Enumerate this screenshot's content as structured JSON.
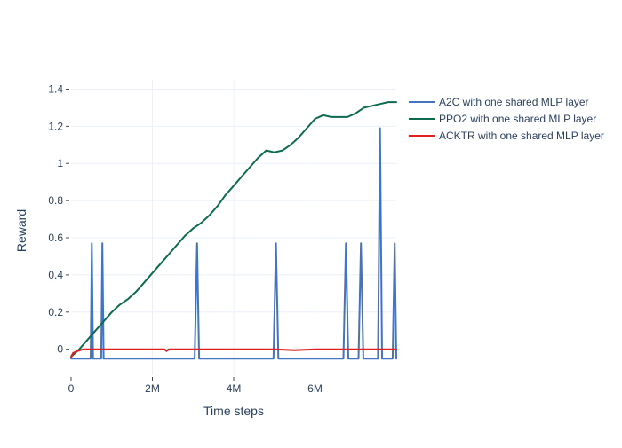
{
  "chart_data": {
    "type": "line",
    "title": "",
    "xlabel": "Time steps",
    "ylabel": "Reward",
    "xlim": [
      0,
      8000000
    ],
    "ylim": [
      -0.14,
      1.45
    ],
    "grid": true,
    "legend_position": "top-right",
    "x_ticks": [
      {
        "value": 0,
        "label": "0"
      },
      {
        "value": 2000000,
        "label": "2M"
      },
      {
        "value": 4000000,
        "label": "4M"
      },
      {
        "value": 6000000,
        "label": "6M"
      }
    ],
    "y_ticks": [
      {
        "value": 0,
        "label": "0"
      },
      {
        "value": 0.2,
        "label": "0.2"
      },
      {
        "value": 0.4,
        "label": "0.4"
      },
      {
        "value": 0.6,
        "label": "0.6"
      },
      {
        "value": 0.8,
        "label": "0.8"
      },
      {
        "value": 1.0,
        "label": "1"
      },
      {
        "value": 1.2,
        "label": "1.2"
      },
      {
        "value": 1.4,
        "label": "1.4"
      }
    ],
    "series": [
      {
        "name": "A2C with one shared MLP layer",
        "color": "#4472c4",
        "x": [
          0,
          450000,
          480000,
          510000,
          540000,
          700000,
          740000,
          770000,
          800000,
          1500000,
          2300000,
          2500000,
          3040000,
          3100000,
          3150000,
          4000000,
          4980000,
          5040000,
          5100000,
          6000000,
          6700000,
          6760000,
          6820000,
          7070000,
          7130000,
          7190000,
          7550000,
          7600000,
          7650000,
          7910000,
          7960000,
          8000000
        ],
        "y": [
          -0.05,
          -0.05,
          -0.05,
          0.57,
          -0.05,
          -0.05,
          -0.05,
          0.57,
          -0.05,
          -0.05,
          -0.05,
          -0.05,
          -0.05,
          0.57,
          -0.05,
          -0.05,
          -0.05,
          0.57,
          -0.05,
          -0.05,
          -0.05,
          0.57,
          -0.05,
          -0.05,
          0.57,
          -0.05,
          -0.05,
          1.19,
          -0.05,
          -0.05,
          0.57,
          -0.05
        ]
      },
      {
        "name": "PPO2 with one shared MLP layer",
        "color": "#0c6b4f",
        "x": [
          0,
          200000,
          400000,
          600000,
          800000,
          1000000,
          1200000,
          1400000,
          1600000,
          1800000,
          2000000,
          2200000,
          2400000,
          2600000,
          2800000,
          3000000,
          3200000,
          3400000,
          3600000,
          3800000,
          4000000,
          4200000,
          4400000,
          4600000,
          4800000,
          5000000,
          5200000,
          5400000,
          5600000,
          5800000,
          6000000,
          6200000,
          6400000,
          6600000,
          6800000,
          7000000,
          7200000,
          7400000,
          7600000,
          7800000,
          8000000
        ],
        "y": [
          -0.04,
          0.0,
          0.05,
          0.1,
          0.15,
          0.2,
          0.24,
          0.27,
          0.31,
          0.36,
          0.41,
          0.46,
          0.51,
          0.56,
          0.61,
          0.65,
          0.68,
          0.72,
          0.77,
          0.83,
          0.88,
          0.93,
          0.98,
          1.03,
          1.07,
          1.06,
          1.07,
          1.1,
          1.14,
          1.19,
          1.24,
          1.26,
          1.25,
          1.25,
          1.25,
          1.27,
          1.3,
          1.31,
          1.32,
          1.33,
          1.33
        ]
      },
      {
        "name": "ACKTR with one shared MLP layer",
        "color": "#e02020",
        "x": [
          0,
          50000,
          150000,
          300000,
          600000,
          1000000,
          1500000,
          2000000,
          2300000,
          2350000,
          2400000,
          3000000,
          4000000,
          5000000,
          5500000,
          6000000,
          7000000,
          8000000
        ],
        "y": [
          -0.04,
          -0.02,
          -0.01,
          0.0,
          0.0,
          0.0,
          0.0,
          0.0,
          0.0,
          -0.01,
          0.0,
          0.0,
          0.0,
          0.0,
          -0.005,
          0.0,
          0.0,
          0.0
        ]
      }
    ]
  }
}
